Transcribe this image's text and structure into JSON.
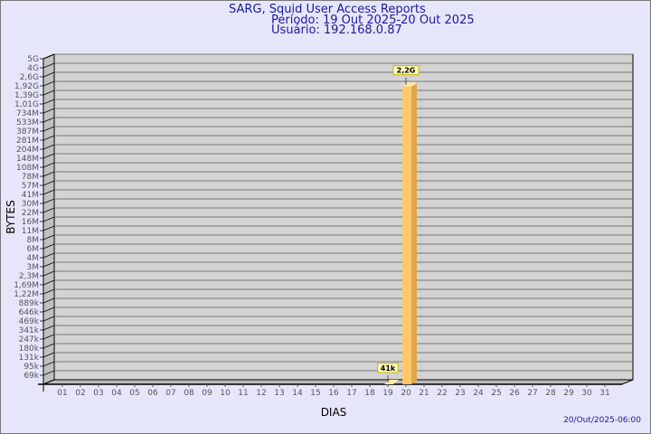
{
  "header": {
    "title": "SARG, Squid User Access Reports",
    "period": "Período: 19 Out 2025-20 Out 2025",
    "user": "Usuário: 192.168.0.87"
  },
  "footer": "20/Out/2025-06:00",
  "colors": {
    "background": "#e6e6fa",
    "wall": "#d3d3d3",
    "bar": "#ffc766",
    "bar_side": "#e0a64c",
    "text": "#1a1a9c",
    "label_box": "#ffffc0"
  },
  "chart_data": {
    "type": "bar",
    "title": "SARG, Squid User Access Reports",
    "xlabel": "DIAS",
    "ylabel": "BYTES",
    "yscale": "log",
    "ylim": [
      69000,
      5000000000
    ],
    "grid": true,
    "style": "3d",
    "y_ticks": [
      "5G",
      "4G",
      "2,6G",
      "1,92G",
      "1,39G",
      "1,01G",
      "734M",
      "533M",
      "387M",
      "281M",
      "204M",
      "148M",
      "108M",
      "78M",
      "57M",
      "41M",
      "30M",
      "22M",
      "16M",
      "11M",
      "8M",
      "6M",
      "4M",
      "3M",
      "2,3M",
      "1,69M",
      "1,22M",
      "889k",
      "646k",
      "469k",
      "341k",
      "247k",
      "180k",
      "131k",
      "95k",
      "69k"
    ],
    "categories": [
      "01",
      "02",
      "03",
      "04",
      "05",
      "06",
      "07",
      "08",
      "09",
      "10",
      "11",
      "12",
      "13",
      "14",
      "15",
      "16",
      "17",
      "18",
      "19",
      "20",
      "21",
      "22",
      "23",
      "24",
      "25",
      "26",
      "27",
      "28",
      "29",
      "30",
      "31"
    ],
    "bars": [
      {
        "day": "19",
        "value": 41000,
        "label": "41k"
      },
      {
        "day": "20",
        "value": 2200000000,
        "label": "2,2G"
      }
    ]
  }
}
